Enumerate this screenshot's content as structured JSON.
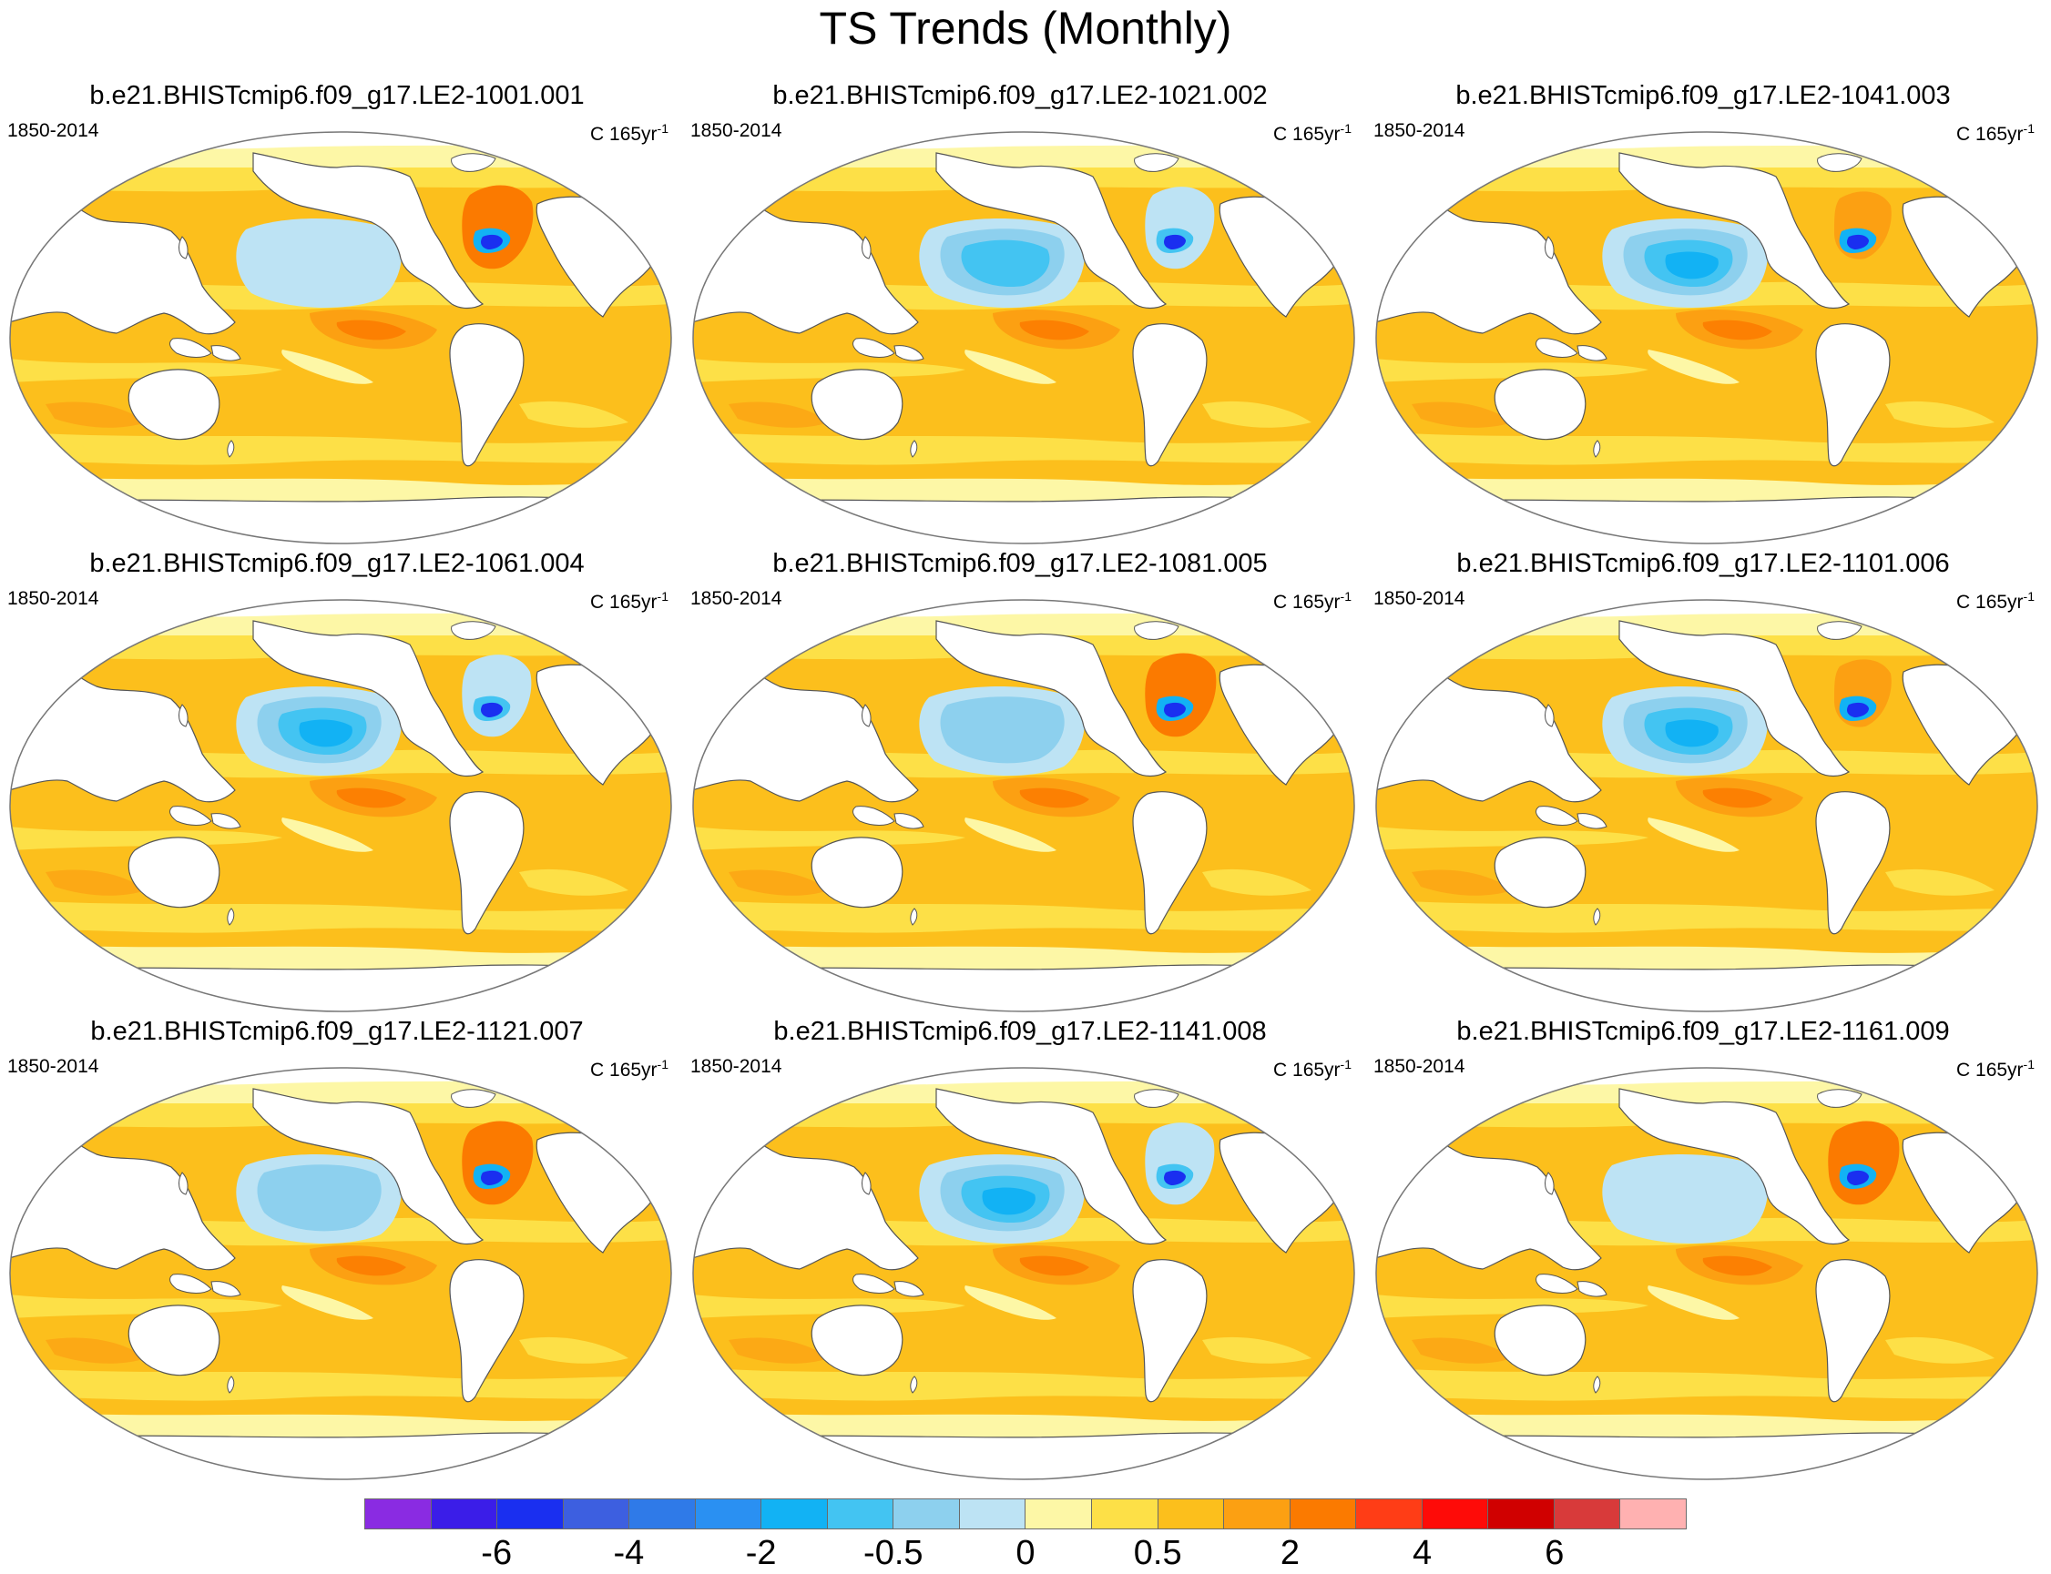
{
  "title": "TS Trends (Monthly)",
  "panels": [
    {
      "title": "b.e21.BHISTcmip6.f09_g17.LE2-1001.001",
      "period": "1850-2014",
      "units": "C 165yr",
      "units_exp": "-1",
      "npac": 2,
      "natl": 5
    },
    {
      "title": "b.e21.BHISTcmip6.f09_g17.LE2-1021.002",
      "period": "1850-2014",
      "units": "C 165yr",
      "units_exp": "-1",
      "npac": 4,
      "natl": 3
    },
    {
      "title": "b.e21.BHISTcmip6.f09_g17.LE2-1041.003",
      "period": "1850-2014",
      "units": "C 165yr",
      "units_exp": "-1",
      "npac": 5,
      "natl": 4
    },
    {
      "title": "b.e21.BHISTcmip6.f09_g17.LE2-1061.004",
      "period": "1850-2014",
      "units": "C 165yr",
      "units_exp": "-1",
      "npac": 5,
      "natl": 3
    },
    {
      "title": "b.e21.BHISTcmip6.f09_g17.LE2-1081.005",
      "period": "1850-2014",
      "units": "C 165yr",
      "units_exp": "-1",
      "npac": 3,
      "natl": 5
    },
    {
      "title": "b.e21.BHISTcmip6.f09_g17.LE2-1101.006",
      "period": "1850-2014",
      "units": "C 165yr",
      "units_exp": "-1",
      "npac": 5,
      "natl": 4
    },
    {
      "title": "b.e21.BHISTcmip6.f09_g17.LE2-1121.007",
      "period": "1850-2014",
      "units": "C 165yr",
      "units_exp": "-1",
      "npac": 3,
      "natl": 5
    },
    {
      "title": "b.e21.BHISTcmip6.f09_g17.LE2-1141.008",
      "period": "1850-2014",
      "units": "C 165yr",
      "units_exp": "-1",
      "npac": 5,
      "natl": 2
    },
    {
      "title": "b.e21.BHISTcmip6.f09_g17.LE2-1161.009",
      "period": "1850-2014",
      "units": "C 165yr",
      "units_exp": "-1",
      "npac": 2,
      "natl": 5
    }
  ],
  "colorbar": {
    "colors": [
      "#8a2be2",
      "#3b1de8",
      "#1a2ff0",
      "#3d5fe0",
      "#2f7ae8",
      "#2a90f2",
      "#12b2f4",
      "#43c4f2",
      "#8dd0ee",
      "#bde3f4",
      "#fdf7a6",
      "#fde047",
      "#fcbf1c",
      "#fca012",
      "#fb7a00",
      "#ff3d16",
      "#fe0b08",
      "#d00000",
      "#d83a3a",
      "#ffb1b1"
    ],
    "labels": [
      {
        "text": "-6",
        "boundary": 2
      },
      {
        "text": "-4",
        "boundary": 4
      },
      {
        "text": "-2",
        "boundary": 6
      },
      {
        "text": "-0.5",
        "boundary": 8
      },
      {
        "text": "0",
        "boundary": 10
      },
      {
        "text": "0.5",
        "boundary": 12
      },
      {
        "text": "2",
        "boundary": 14
      },
      {
        "text": "4",
        "boundary": 16
      },
      {
        "text": "6",
        "boundary": 18
      }
    ]
  }
}
